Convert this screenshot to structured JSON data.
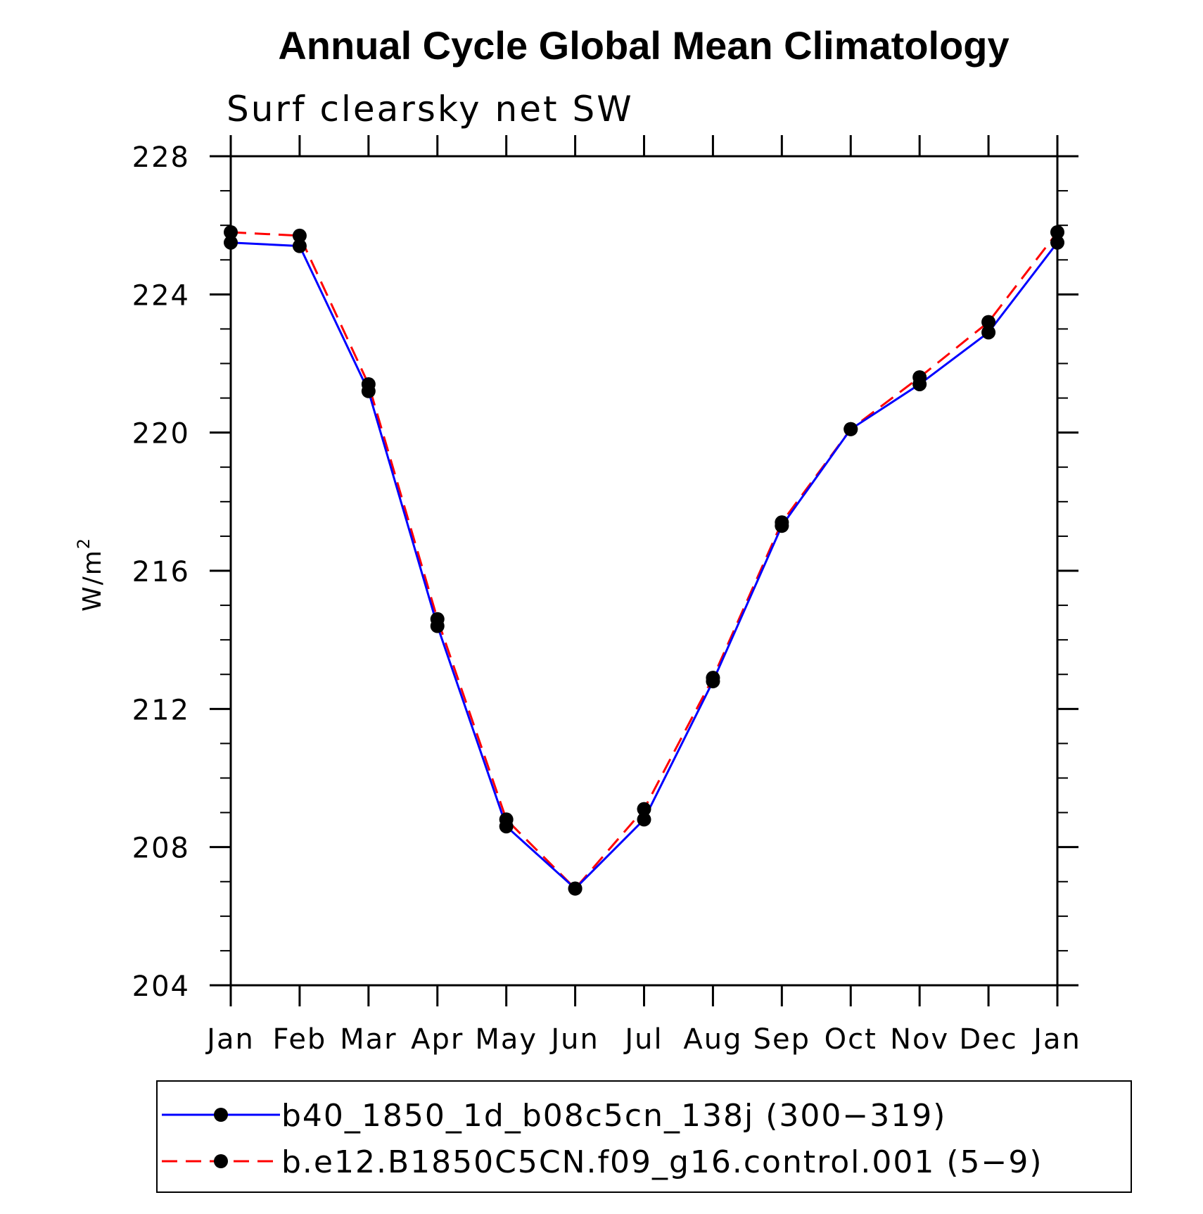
{
  "chart_data": {
    "type": "line",
    "title": "Annual Cycle Global Mean Climatology",
    "subtitle": "Surf clearsky net SW",
    "ylabel": "W/m",
    "ylabel_superscript": "2",
    "xlabel": "",
    "categories": [
      "Jan",
      "Feb",
      "Mar",
      "Apr",
      "May",
      "Jun",
      "Jul",
      "Aug",
      "Sep",
      "Oct",
      "Nov",
      "Dec",
      "Jan"
    ],
    "ylim": [
      204,
      228
    ],
    "yticks": [
      204,
      208,
      212,
      216,
      220,
      224,
      228
    ],
    "yticks_labels": [
      "204",
      "208",
      "212",
      "216",
      "220",
      "224",
      "228"
    ],
    "series": [
      {
        "name": "b40_1850_1d_b08c5cn_138j (300−319)",
        "color": "#0000ff",
        "style": "solid",
        "marker": "filled-circle",
        "values": [
          225.5,
          225.4,
          221.2,
          214.4,
          208.6,
          206.8,
          208.8,
          212.8,
          217.3,
          220.1,
          221.4,
          222.9,
          225.5
        ]
      },
      {
        "name": "b.e12.B1850C5CN.f09_g16.control.001 (5−9)",
        "color": "#ff0000",
        "style": "dashed",
        "marker": "filled-circle",
        "values": [
          225.8,
          225.7,
          221.4,
          214.6,
          208.8,
          206.8,
          209.1,
          212.9,
          217.4,
          220.1,
          221.6,
          223.2,
          225.8
        ]
      }
    ],
    "grid": false,
    "legend_position": "bottom"
  }
}
